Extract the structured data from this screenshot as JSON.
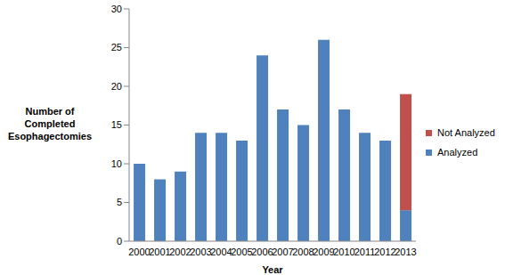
{
  "chart_data": {
    "type": "bar",
    "categories": [
      "2000",
      "2001",
      "2002",
      "2003",
      "2004",
      "2005",
      "2006",
      "2007",
      "2008",
      "2009",
      "2010",
      "2011",
      "2012",
      "2013"
    ],
    "series": [
      {
        "name": "Analyzed",
        "color": "#4f81bd",
        "values": [
          10,
          8,
          9,
          14,
          14,
          13,
          24,
          17,
          15,
          26,
          17,
          14,
          13,
          4
        ]
      },
      {
        "name": "Not Analyzed",
        "color": "#c0504d",
        "values": [
          0,
          0,
          0,
          0,
          0,
          0,
          0,
          0,
          0,
          0,
          0,
          0,
          0,
          15
        ]
      }
    ],
    "x_label": "Year",
    "y_label": "Number of Completed Esophagectomies",
    "ylim": [
      0,
      30
    ],
    "yticks": [
      0,
      5,
      10,
      15,
      20,
      25,
      30
    ],
    "stacked": true,
    "legend": "right",
    "grid": false
  }
}
